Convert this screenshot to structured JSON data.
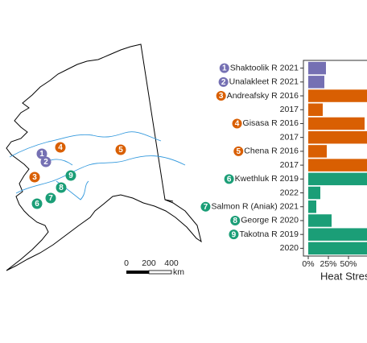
{
  "chart_data": {
    "type": "bar",
    "orientation": "horizontal",
    "categories": [
      "Shaktoolik R 2021",
      "Unalakleet R 2021",
      "Andreafsky R 2016",
      "2017",
      "Gisasa R 2016",
      "2017",
      "Chena R 2016",
      "2017",
      "Kwethluk R 2019",
      "2022",
      "Salmon R (Aniak) 2021",
      "George R 2020",
      "Takotna R 2019",
      "2020"
    ],
    "badges": [
      "1",
      "2",
      "3",
      null,
      "4",
      null,
      "5",
      null,
      "6",
      null,
      "7",
      "8",
      "9",
      null
    ],
    "values": [
      22,
      20,
      80,
      18,
      70,
      80,
      23,
      80,
      80,
      15,
      10,
      29,
      80,
      80
    ],
    "colors": [
      "#7570b3",
      "#7570b3",
      "#d95f02",
      "#d95f02",
      "#d95f02",
      "#d95f02",
      "#d95f02",
      "#d95f02",
      "#1b9e77",
      "#1b9e77",
      "#1b9e77",
      "#1b9e77",
      "#1b9e77",
      "#1b9e77"
    ],
    "xlim": [
      -6,
      100
    ],
    "xticks": [
      {
        "value": 0,
        "label": "0%"
      },
      {
        "value": 25,
        "label": "25%"
      },
      {
        "value": 50,
        "label": "50%"
      }
    ],
    "xlabel": "Heat Stress"
  },
  "map": {
    "markers": [
      {
        "label": "1",
        "color": "#7570b3"
      },
      {
        "label": "2",
        "color": "#7570b3"
      },
      {
        "label": "3",
        "color": "#d95f02"
      },
      {
        "label": "4",
        "color": "#d95f02"
      },
      {
        "label": "5",
        "color": "#d95f02"
      },
      {
        "label": "6",
        "color": "#1b9e77"
      },
      {
        "label": "7",
        "color": "#1b9e77"
      },
      {
        "label": "8",
        "color": "#1b9e77"
      },
      {
        "label": "9",
        "color": "#1b9e77"
      }
    ],
    "scale_labels": [
      "0",
      "200",
      "400"
    ],
    "scale_unit": "km"
  }
}
